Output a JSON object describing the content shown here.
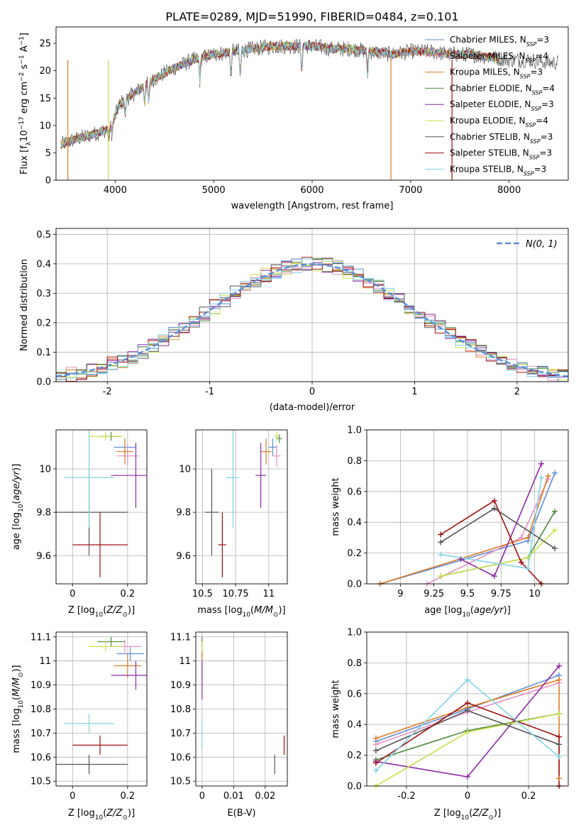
{
  "figure": {
    "title": "PLATE=0289, MJD=51990, FIBERID=0484, z=0.101"
  },
  "colors": {
    "c0": "#5b8fd6",
    "c1": "#e88fc2",
    "c2": "#e07a24",
    "c3": "#4f8a3c",
    "c4": "#8e2aa6",
    "c5": "#c9e04a",
    "c6": "#555555",
    "c7": "#a01010",
    "c8": "#7fd3e6",
    "normal": "#5b8fd6"
  },
  "chart_data": [
    {
      "id": "spectrum",
      "type": "line",
      "xlabel": "wavelength [Angstrom, rest frame]",
      "ylabel": "Flux [f_λ10^-17 erg cm^-2 s^-1 A^-1]",
      "xlim": [
        3400,
        8600
      ],
      "ylim": [
        0,
        28
      ],
      "xticks": [
        4000,
        5000,
        6000,
        7000,
        8000
      ],
      "yticks": [
        0,
        5,
        10,
        15,
        20,
        25
      ],
      "grid": false,
      "legend_position": "top-right",
      "continuum": {
        "wavelength": [
          3450,
          3600,
          3800,
          3950,
          4050,
          4200,
          4400,
          4600,
          4800,
          5000,
          5200,
          5400,
          5600,
          5800,
          6000,
          6200,
          6400,
          6600,
          6800,
          7000,
          7200,
          7400,
          7600,
          7800,
          8000,
          8200,
          8400,
          8600
        ],
        "flux": [
          6.5,
          7.5,
          8.5,
          9.5,
          14.0,
          16.0,
          18.5,
          20.5,
          22.0,
          23.0,
          23.5,
          24.0,
          24.5,
          24.5,
          24.5,
          24.0,
          24.0,
          23.5,
          23.0,
          23.5,
          23.5,
          23.0,
          23.0,
          22.5,
          22.0,
          22.0,
          21.5,
          21.5
        ]
      },
      "series": [
        {
          "label": "Chabrier MILES",
          "n_ssp": "3",
          "color": "c0"
        },
        {
          "label": "Salpeter MILES",
          "n_ssp": "4",
          "color": "c1"
        },
        {
          "label": "Kroupa MILES",
          "n_ssp": "3",
          "color": "c2"
        },
        {
          "label": "Chabrier ELODIE",
          "n_ssp": "4",
          "color": "c3"
        },
        {
          "label": "Salpeter ELODIE",
          "n_ssp": "3",
          "color": "c4"
        },
        {
          "label": "Kroupa ELODIE",
          "n_ssp": "4",
          "color": "c5"
        },
        {
          "label": "Chabrier STELIB",
          "n_ssp": "3",
          "color": "c6"
        },
        {
          "label": "Salpeter STELIB",
          "n_ssp": "3",
          "color": "c7"
        },
        {
          "label": "Kroupa STELIB",
          "n_ssp": "3",
          "color": "c8"
        }
      ],
      "nssp_prefix": "N",
      "nssp_sub": "SSP"
    },
    {
      "id": "residuals",
      "type": "line",
      "xlabel": "(data-model)/error",
      "ylabel": "Normed distribution",
      "xlim": [
        -2.5,
        2.5
      ],
      "ylim": [
        0,
        0.52
      ],
      "xticks": [
        -2,
        -1,
        0,
        1,
        2
      ],
      "yticks": [
        0.0,
        0.1,
        0.2,
        0.3,
        0.4,
        0.5
      ],
      "grid": true,
      "legend_position": "top-right",
      "legend_label": "N(0, 1)"
    },
    {
      "id": "age-vs-Z",
      "type": "scatter",
      "xlabel": "Z [log10(Z/Z☉)]",
      "ylabel": "age [log10(age/yr)]",
      "xlim": [
        -0.06,
        0.27
      ],
      "ylim": [
        9.47,
        10.18
      ],
      "xticks": [
        0.0,
        0.2
      ],
      "yticks": [
        9.6,
        9.8,
        10.0
      ],
      "grid": true,
      "points": [
        {
          "color": "c0",
          "x": 0.19,
          "y": 10.1,
          "xerr": 0.04,
          "yerr": 0.04
        },
        {
          "color": "c1",
          "x": 0.2,
          "y": 10.06,
          "xerr": 0.04,
          "yerr": 0.05
        },
        {
          "color": "c2",
          "x": 0.19,
          "y": 10.08,
          "xerr": 0.03,
          "yerr": 0.06
        },
        {
          "color": "c3",
          "x": 0.14,
          "y": 10.15,
          "xerr": 0.04,
          "yerr": 0.02
        },
        {
          "color": "c4",
          "x": 0.23,
          "y": 9.97,
          "xerr": 0.09,
          "yerr": 0.15
        },
        {
          "color": "c5",
          "x": 0.12,
          "y": 10.15,
          "xerr": 0.06,
          "yerr": 0.02
        },
        {
          "color": "c6",
          "x": 0.06,
          "y": 9.8,
          "xerr": 0.14,
          "yerr": 0.2
        },
        {
          "color": "c7",
          "x": 0.1,
          "y": 9.65,
          "xerr": 0.1,
          "yerr": 0.15
        },
        {
          "color": "c8",
          "x": 0.06,
          "y": 9.96,
          "xerr": 0.09,
          "yerr": 0.23
        }
      ]
    },
    {
      "id": "age-vs-mass",
      "type": "scatter",
      "xlabel": "mass [log10(M/M☉)]",
      "ylabel": "",
      "xlim": [
        10.45,
        11.14
      ],
      "ylim": [
        9.47,
        10.18
      ],
      "xticks": [
        10.5,
        10.75,
        11.0
      ],
      "yticks": [
        9.6,
        9.8,
        10.0
      ],
      "grid": true,
      "points": [
        {
          "color": "c0",
          "x": 11.03,
          "y": 10.1,
          "xerr": 0.03,
          "yerr": 0.04
        },
        {
          "color": "c1",
          "x": 11.06,
          "y": 10.06,
          "xerr": 0.03,
          "yerr": 0.05
        },
        {
          "color": "c2",
          "x": 10.98,
          "y": 10.08,
          "xerr": 0.04,
          "yerr": 0.06
        },
        {
          "color": "c3",
          "x": 11.08,
          "y": 10.14,
          "xerr": 0.02,
          "yerr": 0.02
        },
        {
          "color": "c4",
          "x": 10.94,
          "y": 9.97,
          "xerr": 0.04,
          "yerr": 0.15
        },
        {
          "color": "c5",
          "x": 11.06,
          "y": 10.15,
          "xerr": 0.02,
          "yerr": 0.02
        },
        {
          "color": "c6",
          "x": 10.57,
          "y": 9.8,
          "xerr": 0.05,
          "yerr": 0.2
        },
        {
          "color": "c7",
          "x": 10.65,
          "y": 9.65,
          "xerr": 0.03,
          "yerr": 0.15
        },
        {
          "color": "c8",
          "x": 10.73,
          "y": 9.96,
          "xerr": 0.05,
          "yerr": 0.23
        }
      ]
    },
    {
      "id": "mass-weight-vs-age",
      "type": "line",
      "xlabel": "age [log10(age/yr)]",
      "ylabel": "mass weight",
      "xlim": [
        8.75,
        10.25
      ],
      "ylim": [
        0.0,
        1.0
      ],
      "xticks": [
        9.0,
        9.25,
        9.5,
        9.75,
        10.0
      ],
      "yticks": [
        0.0,
        0.2,
        0.4,
        0.6,
        0.8,
        1.0
      ],
      "grid": true,
      "series": [
        {
          "color": "c0",
          "x": [
            8.85,
            9.95,
            10.15
          ],
          "y": [
            0.0,
            0.28,
            0.72
          ]
        },
        {
          "color": "c1",
          "x": [
            9.2,
            9.9,
            10.1
          ],
          "y": [
            0.0,
            0.3,
            0.68
          ]
        },
        {
          "color": "c2",
          "x": [
            8.85,
            9.95,
            10.1
          ],
          "y": [
            0.0,
            0.3,
            0.7
          ]
        },
        {
          "color": "c3",
          "x": [
            9.3,
            9.95,
            10.15
          ],
          "y": [
            0.05,
            0.17,
            0.47
          ]
        },
        {
          "color": "c4",
          "x": [
            9.45,
            9.7,
            10.05
          ],
          "y": [
            0.16,
            0.05,
            0.78
          ]
        },
        {
          "color": "c5",
          "x": [
            9.3,
            9.95,
            10.15
          ],
          "y": [
            0.05,
            0.17,
            0.35
          ]
        },
        {
          "color": "c6",
          "x": [
            9.3,
            9.7,
            10.15
          ],
          "y": [
            0.27,
            0.49,
            0.23
          ]
        },
        {
          "color": "c7",
          "x": [
            9.3,
            9.7,
            9.9,
            10.05
          ],
          "y": [
            0.32,
            0.54,
            0.14,
            0.0
          ]
        },
        {
          "color": "c8",
          "x": [
            9.3,
            9.95,
            10.05
          ],
          "y": [
            0.19,
            0.1,
            0.69
          ]
        }
      ]
    },
    {
      "id": "mass-vs-Z",
      "type": "scatter",
      "xlabel": "Z [log10(Z/Z☉)]",
      "ylabel": "mass [log10(M/M☉)]",
      "xlim": [
        -0.06,
        0.27
      ],
      "ylim": [
        10.48,
        11.12
      ],
      "xticks": [
        0.0,
        0.2
      ],
      "yticks": [
        10.5,
        10.6,
        10.7,
        10.8,
        10.9,
        11.0,
        11.1
      ],
      "grid": true,
      "points": [
        {
          "color": "c0",
          "x": 0.21,
          "y": 11.03,
          "xerr": 0.05,
          "yerr": 0.03
        },
        {
          "color": "c1",
          "x": 0.19,
          "y": 11.06,
          "xerr": 0.06,
          "yerr": 0.03
        },
        {
          "color": "c2",
          "x": 0.2,
          "y": 10.98,
          "xerr": 0.05,
          "yerr": 0.05
        },
        {
          "color": "c3",
          "x": 0.14,
          "y": 11.08,
          "xerr": 0.05,
          "yerr": 0.02
        },
        {
          "color": "c4",
          "x": 0.23,
          "y": 10.94,
          "xerr": 0.09,
          "yerr": 0.06
        },
        {
          "color": "c5",
          "x": 0.12,
          "y": 11.06,
          "xerr": 0.06,
          "yerr": 0.02
        },
        {
          "color": "c6",
          "x": 0.06,
          "y": 10.57,
          "xerr": 0.14,
          "yerr": 0.04
        },
        {
          "color": "c7",
          "x": 0.1,
          "y": 10.65,
          "xerr": 0.1,
          "yerr": 0.04
        },
        {
          "color": "c8",
          "x": 0.06,
          "y": 10.74,
          "xerr": 0.09,
          "yerr": 0.04
        }
      ]
    },
    {
      "id": "mass-vs-ebv",
      "type": "scatter",
      "xlabel": "E(B-V)",
      "ylabel": "",
      "xlim": [
        -0.002,
        0.027
      ],
      "ylim": [
        10.48,
        11.12
      ],
      "xticks": [
        0.0,
        0.01,
        0.02
      ],
      "yticks": [
        10.5,
        10.6,
        10.7,
        10.8,
        10.9,
        11.0,
        11.1
      ],
      "grid": true,
      "points": [
        {
          "color": "c0",
          "x": 0.0,
          "y": 11.03,
          "xerr": 0,
          "yerr": 0.04
        },
        {
          "color": "c1",
          "x": 0.0,
          "y": 11.06,
          "xerr": 0,
          "yerr": 0.04
        },
        {
          "color": "c2",
          "x": 0.0,
          "y": 10.98,
          "xerr": 0,
          "yerr": 0.06
        },
        {
          "color": "c3",
          "x": 0.0,
          "y": 11.08,
          "xerr": 0,
          "yerr": 0.02
        },
        {
          "color": "c4",
          "x": 0.0,
          "y": 10.92,
          "xerr": 0,
          "yerr": 0.08
        },
        {
          "color": "c5",
          "x": 0.0,
          "y": 11.06,
          "xerr": 0,
          "yerr": 0.02
        },
        {
          "color": "c6",
          "x": 0.023,
          "y": 10.57,
          "xerr": 0,
          "yerr": 0.04
        },
        {
          "color": "c7",
          "x": 0.026,
          "y": 10.65,
          "xerr": 0,
          "yerr": 0.04
        },
        {
          "color": "c8",
          "x": 0.0,
          "y": 10.7,
          "xerr": 0,
          "yerr": 0.06
        }
      ]
    },
    {
      "id": "mass-weight-vs-Z",
      "type": "line",
      "xlabel": "Z [log10(Z/Z☉)]",
      "ylabel": "mass weight",
      "xlim": [
        -0.33,
        0.33
      ],
      "ylim": [
        0.0,
        1.0
      ],
      "xticks": [
        -0.2,
        0.0,
        0.2
      ],
      "yticks": [
        0.0,
        0.2,
        0.4,
        0.6,
        0.8,
        1.0
      ],
      "grid": true,
      "series": [
        {
          "color": "c0",
          "x": [
            -0.3,
            0.0,
            0.3
          ],
          "y": [
            0.29,
            0.5,
            0.72
          ]
        },
        {
          "color": "c1",
          "x": [
            -0.3,
            0.0,
            0.3
          ],
          "y": [
            0.27,
            0.48,
            0.67
          ]
        },
        {
          "color": "c2",
          "x": [
            -0.3,
            0.0,
            0.3,
            0.3
          ],
          "y": [
            0.31,
            0.51,
            0.69,
            0.05
          ]
        },
        {
          "color": "c3",
          "x": [
            -0.3,
            0.0,
            0.3
          ],
          "y": [
            0.17,
            0.36,
            0.47
          ]
        },
        {
          "color": "c4",
          "x": [
            -0.3,
            0.0,
            0.3
          ],
          "y": [
            0.16,
            0.06,
            0.78
          ]
        },
        {
          "color": "c5",
          "x": [
            -0.3,
            0.0,
            0.3
          ],
          "y": [
            0.0,
            0.35,
            0.47
          ]
        },
        {
          "color": "c6",
          "x": [
            -0.3,
            0.0,
            0.3
          ],
          "y": [
            0.23,
            0.49,
            0.27
          ]
        },
        {
          "color": "c7",
          "x": [
            -0.3,
            0.0,
            0.3,
            0.3
          ],
          "y": [
            0.15,
            0.54,
            0.32,
            0.0
          ]
        },
        {
          "color": "c8",
          "x": [
            -0.3,
            0.0,
            0.3
          ],
          "y": [
            0.1,
            0.69,
            0.19
          ]
        }
      ]
    }
  ]
}
